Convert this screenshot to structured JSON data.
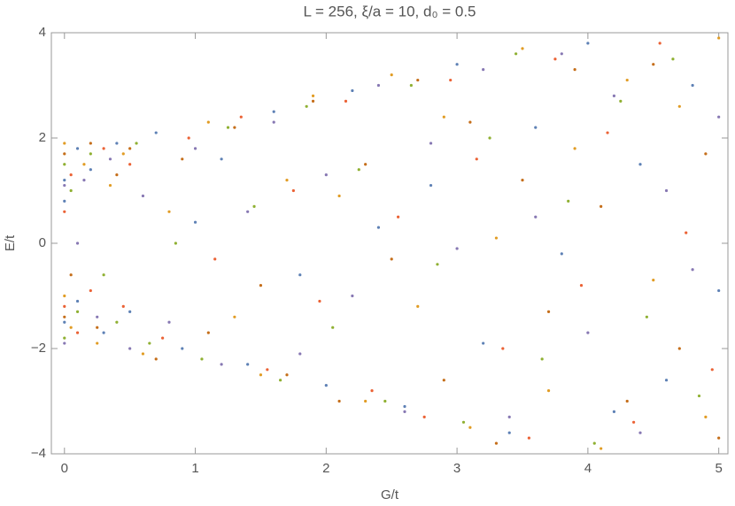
{
  "chart_data": {
    "type": "scatter",
    "title": "L = 256, ξ/a = 10, d₀ = 0.5",
    "xlabel": "G/t",
    "ylabel": "E/t",
    "xlim": [
      -0.1,
      5.07
    ],
    "ylim": [
      -4,
      4
    ],
    "xticks": [
      0,
      1,
      2,
      3,
      4,
      5
    ],
    "yticks": [
      {
        "value": -4,
        "label": "−4"
      },
      {
        "value": -2,
        "label": "−2"
      },
      0,
      2,
      4
    ],
    "series": [
      {
        "name": "s1",
        "color": "#5e81b5",
        "x": [
          0,
          0,
          0,
          0.1,
          0.1,
          0.2,
          0.3,
          0.4,
          0.5,
          0.7,
          0.9,
          1.0,
          1.2,
          1.4,
          1.6,
          1.8,
          2.0,
          2.2,
          2.4,
          2.6,
          2.8,
          3.0,
          3.2,
          3.4,
          3.6,
          3.8,
          4.0,
          4.2,
          4.4,
          4.6,
          4.8,
          5.0
        ],
        "values": [
          1.2,
          -1.5,
          0.8,
          1.8,
          -1.1,
          1.4,
          -1.7,
          1.9,
          -1.3,
          2.1,
          -2.0,
          0.4,
          1.6,
          -2.3,
          2.5,
          -0.6,
          -2.7,
          2.9,
          0.3,
          -3.1,
          1.1,
          3.4,
          -1.9,
          -3.6,
          2.2,
          -0.2,
          3.8,
          -3.2,
          1.5,
          -2.6,
          3.0,
          -0.9
        ]
      },
      {
        "name": "s2",
        "color": "#e19c24",
        "x": [
          0,
          0,
          0.05,
          0.15,
          0.25,
          0.35,
          0.45,
          0.6,
          0.8,
          1.1,
          1.3,
          1.5,
          1.7,
          1.9,
          2.1,
          2.3,
          2.5,
          2.7,
          2.9,
          3.1,
          3.3,
          3.5,
          3.7,
          3.9,
          4.1,
          4.3,
          4.5,
          4.7,
          4.9,
          5.0
        ],
        "values": [
          1.9,
          -1.0,
          -1.6,
          1.5,
          -1.9,
          1.1,
          1.7,
          -2.1,
          0.6,
          2.3,
          -1.4,
          -2.5,
          1.2,
          2.8,
          0.9,
          -3.0,
          3.2,
          -1.2,
          2.4,
          -3.5,
          0.1,
          3.7,
          -2.8,
          1.8,
          -3.9,
          3.1,
          -0.7,
          2.6,
          -3.3,
          3.9
        ]
      },
      {
        "name": "s3",
        "color": "#8fb032",
        "x": [
          0,
          0,
          0.05,
          0.1,
          0.2,
          0.3,
          0.4,
          0.55,
          0.65,
          0.85,
          1.05,
          1.25,
          1.45,
          1.65,
          1.85,
          2.05,
          2.25,
          2.45,
          2.65,
          2.85,
          3.05,
          3.25,
          3.45,
          3.65,
          3.85,
          4.05,
          4.25,
          4.45,
          4.65,
          4.85
        ],
        "values": [
          1.5,
          -1.8,
          1.0,
          -1.3,
          1.7,
          -0.6,
          -1.5,
          1.9,
          -1.9,
          0.0,
          -2.2,
          2.2,
          0.7,
          -2.6,
          2.6,
          -1.6,
          1.4,
          -3.0,
          3.0,
          -0.4,
          -3.4,
          2.0,
          3.6,
          -2.2,
          0.8,
          -3.8,
          2.7,
          -1.4,
          3.5,
          -2.9
        ]
      },
      {
        "name": "s4",
        "color": "#eb6235",
        "x": [
          0,
          0,
          0.05,
          0.1,
          0.2,
          0.3,
          0.45,
          0.5,
          0.75,
          0.95,
          1.15,
          1.35,
          1.55,
          1.75,
          1.95,
          2.15,
          2.35,
          2.55,
          2.75,
          2.95,
          3.15,
          3.35,
          3.55,
          3.75,
          3.95,
          4.15,
          4.35,
          4.55,
          4.75,
          4.95
        ],
        "values": [
          0.6,
          -1.2,
          1.3,
          -1.7,
          -0.9,
          1.8,
          -1.2,
          1.5,
          -1.8,
          2.0,
          -0.3,
          2.4,
          -2.4,
          1.0,
          -1.1,
          2.7,
          -2.8,
          0.5,
          -3.3,
          3.1,
          1.6,
          -2.0,
          -3.7,
          3.5,
          -0.8,
          2.1,
          -3.4,
          3.8,
          0.2,
          -2.4
        ]
      },
      {
        "name": "s5",
        "color": "#8778b3",
        "x": [
          0,
          0,
          0.1,
          0.15,
          0.25,
          0.35,
          0.5,
          0.6,
          0.8,
          1.0,
          1.2,
          1.4,
          1.6,
          1.8,
          2.0,
          2.2,
          2.4,
          2.6,
          2.8,
          3.0,
          3.2,
          3.4,
          3.6,
          3.8,
          4.0,
          4.2,
          4.4,
          4.6,
          4.8,
          5.0
        ],
        "values": [
          1.1,
          -1.9,
          0.0,
          1.2,
          -1.4,
          1.6,
          -2.0,
          0.9,
          -1.5,
          1.8,
          -2.3,
          0.6,
          2.3,
          -2.1,
          1.3,
          -1.0,
          3.0,
          -3.2,
          1.9,
          -0.1,
          3.3,
          -3.3,
          0.5,
          3.6,
          -1.7,
          2.8,
          -3.6,
          1.0,
          -0.5,
          2.4
        ]
      },
      {
        "name": "s6",
        "color": "#c56e1a",
        "x": [
          0,
          0,
          0.05,
          0.2,
          0.25,
          0.4,
          0.5,
          0.7,
          0.9,
          1.1,
          1.3,
          1.5,
          1.7,
          1.9,
          2.1,
          2.3,
          2.5,
          2.7,
          2.9,
          3.1,
          3.3,
          3.5,
          3.7,
          3.9,
          4.1,
          4.3,
          4.5,
          4.7,
          4.9,
          5.0
        ],
        "values": [
          1.7,
          -1.4,
          -0.6,
          1.9,
          -1.6,
          1.3,
          1.8,
          -2.2,
          1.6,
          -1.7,
          2.2,
          -0.8,
          -2.5,
          2.7,
          -3.0,
          1.5,
          -0.3,
          3.1,
          -2.6,
          2.3,
          -3.8,
          1.2,
          -1.3,
          3.3,
          0.7,
          -3.0,
          3.4,
          -2.0,
          1.7,
          -3.7
        ]
      }
    ]
  }
}
